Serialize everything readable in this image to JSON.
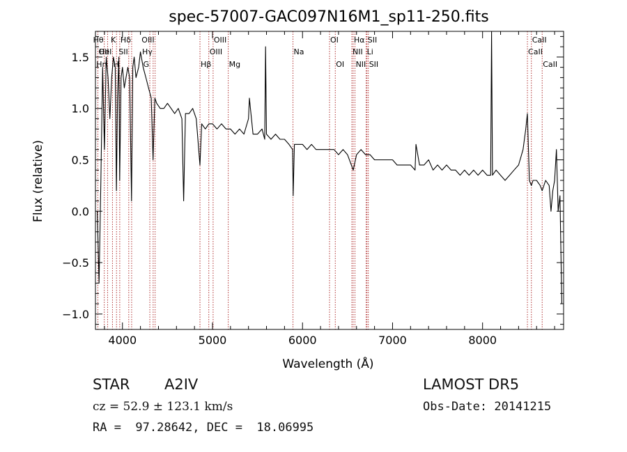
{
  "chart_data": {
    "type": "line",
    "title": "spec-57007-GAC097N16M1_sp11-250.fits",
    "xlabel": "Wavelength (Å)",
    "ylabel": "Flux (relative)",
    "xlim": [
      3700,
      8900
    ],
    "ylim": [
      -1.15,
      1.75
    ],
    "xticks": [
      4000,
      5000,
      6000,
      7000,
      8000
    ],
    "yticks": [
      -1.0,
      -0.5,
      0.0,
      0.5,
      1.0,
      1.5
    ],
    "xtick_labels": [
      "4000",
      "5000",
      "6000",
      "7000",
      "8000"
    ],
    "ytick_labels": [
      "−1.0",
      "−0.5",
      "0.0",
      "0.5",
      "1.0",
      "1.5"
    ],
    "grid": false,
    "series": [
      {
        "x": [
          3720,
          3740,
          3760,
          3780,
          3800,
          3820,
          3840,
          3860,
          3880,
          3900,
          3920,
          3933,
          3945,
          3960,
          3969,
          3985,
          4000,
          4020,
          4040,
          4060,
          4080,
          4101,
          4115,
          4130,
          4150,
          4180,
          4200,
          4230,
          4260,
          4290,
          4320,
          4340,
          4360,
          4380,
          4420,
          4460,
          4500,
          4540,
          4580,
          4620,
          4660,
          4680,
          4700,
          4740,
          4780,
          4820,
          4861,
          4880,
          4920,
          4960,
          5000,
          5050,
          5100,
          5150,
          5200,
          5250,
          5300,
          5350,
          5400,
          5410,
          5450,
          5500,
          5550,
          5580,
          5590,
          5600,
          5650,
          5700,
          5750,
          5800,
          5850,
          5890,
          5896,
          5910,
          5950,
          6000,
          6050,
          6100,
          6150,
          6200,
          6250,
          6300,
          6350,
          6400,
          6450,
          6500,
          6563,
          6600,
          6650,
          6700,
          6750,
          6800,
          6850,
          6900,
          6950,
          7000,
          7050,
          7100,
          7150,
          7200,
          7250,
          7260,
          7300,
          7350,
          7400,
          7450,
          7500,
          7550,
          7600,
          7650,
          7700,
          7750,
          7800,
          7850,
          7900,
          7950,
          8000,
          8050,
          8090,
          8100,
          8110,
          8150,
          8200,
          8250,
          8300,
          8350,
          8400,
          8450,
          8480,
          8498,
          8520,
          8542,
          8560,
          8600,
          8640,
          8662,
          8700,
          8740,
          8760,
          8780,
          8800,
          8820,
          8840,
          8860,
          8880
        ],
        "y": [
          0.0,
          -0.7,
          0.3,
          1.4,
          0.6,
          1.5,
          1.3,
          0.9,
          1.3,
          1.5,
          1.4,
          0.2,
          1.1,
          1.5,
          0.3,
          1.3,
          1.4,
          1.2,
          1.3,
          1.4,
          1.3,
          0.1,
          1.4,
          1.5,
          1.3,
          1.4,
          1.55,
          1.4,
          1.3,
          1.2,
          1.1,
          0.5,
          1.1,
          1.05,
          1.0,
          1.0,
          1.05,
          1.0,
          0.95,
          1.0,
          0.9,
          0.1,
          0.95,
          0.95,
          1.0,
          0.9,
          0.45,
          0.85,
          0.8,
          0.85,
          0.85,
          0.8,
          0.85,
          0.8,
          0.8,
          0.75,
          0.8,
          0.75,
          0.9,
          1.1,
          0.75,
          0.75,
          0.8,
          0.7,
          1.6,
          0.75,
          0.7,
          0.75,
          0.7,
          0.7,
          0.65,
          0.6,
          0.15,
          0.65,
          0.65,
          0.65,
          0.6,
          0.65,
          0.6,
          0.6,
          0.6,
          0.6,
          0.6,
          0.55,
          0.6,
          0.55,
          0.4,
          0.55,
          0.6,
          0.55,
          0.55,
          0.5,
          0.5,
          0.5,
          0.5,
          0.5,
          0.45,
          0.45,
          0.45,
          0.45,
          0.4,
          0.65,
          0.45,
          0.45,
          0.5,
          0.4,
          0.45,
          0.4,
          0.45,
          0.4,
          0.4,
          0.35,
          0.4,
          0.35,
          0.4,
          0.35,
          0.4,
          0.35,
          0.35,
          1.75,
          0.35,
          0.4,
          0.35,
          0.3,
          0.35,
          0.4,
          0.45,
          0.6,
          0.8,
          0.95,
          0.3,
          0.25,
          0.3,
          0.3,
          0.25,
          0.2,
          0.3,
          0.25,
          0.0,
          0.2,
          0.3,
          0.6,
          0.0,
          0.15,
          -0.9
        ]
      }
    ],
    "lines": [
      {
        "x": 3727,
        "label": "OII",
        "row": 1,
        "side": "right"
      },
      {
        "x": 3798,
        "label": "Hθ",
        "row": 0,
        "side": "left"
      },
      {
        "x": 3835,
        "label": "Hη",
        "row": 2,
        "side": "left"
      },
      {
        "x": 3889,
        "label": "HeI",
        "row": 1,
        "side": "left"
      },
      {
        "x": 3934,
        "label": "K",
        "row": 0,
        "side": "left"
      },
      {
        "x": 3970,
        "label": "H",
        "row": 2,
        "side": "left"
      },
      {
        "x": 4070,
        "label": "SII",
        "row": 1,
        "side": "left"
      },
      {
        "x": 4102,
        "label": "Hδ",
        "row": 0,
        "side": "left"
      },
      {
        "x": 4304,
        "label": "G",
        "row": 2,
        "side": "left"
      },
      {
        "x": 4341,
        "label": "Hγ",
        "row": 1,
        "side": "left"
      },
      {
        "x": 4363,
        "label": "OIII",
        "row": 0,
        "side": "left"
      },
      {
        "x": 4861,
        "label": "Hβ",
        "row": 2,
        "side": "right"
      },
      {
        "x": 4959,
        "label": "OIII",
        "row": 1,
        "side": "right"
      },
      {
        "x": 5007,
        "label": "OIII",
        "row": 0,
        "side": "right"
      },
      {
        "x": 5175,
        "label": "Mg",
        "row": 2,
        "side": "right"
      },
      {
        "x": 5894,
        "label": "Na",
        "row": 1,
        "side": "right"
      },
      {
        "x": 6300,
        "label": "OI",
        "row": 0,
        "side": "right"
      },
      {
        "x": 6364,
        "label": "OI",
        "row": 2,
        "side": "right"
      },
      {
        "x": 6548,
        "label": "NII",
        "row": 1,
        "side": "right"
      },
      {
        "x": 6563,
        "label": "Hα",
        "row": 0,
        "side": "right"
      },
      {
        "x": 6583,
        "label": "NII",
        "row": 2,
        "side": "right"
      },
      {
        "x": 6707,
        "label": "Li",
        "row": 1,
        "side": "right"
      },
      {
        "x": 6716,
        "label": "SII",
        "row": 0,
        "side": "right"
      },
      {
        "x": 6731,
        "label": "SII",
        "row": 2,
        "side": "right"
      },
      {
        "x": 8498,
        "label": "CaII",
        "row": 1,
        "side": "right"
      },
      {
        "x": 8542,
        "label": "CaII",
        "row": 0,
        "side": "right"
      },
      {
        "x": 8662,
        "label": "CaII",
        "row": 2,
        "side": "right"
      }
    ],
    "line_color": "#b03030"
  },
  "info": {
    "star_label": "STAR",
    "class_label": "A2IV",
    "survey": "LAMOST DR5",
    "cz_line": "cz = 52.9 ± 123.1 km/s",
    "obs_date": "Obs-Date: 20141215",
    "coords": "RA =  97.28642, DEC =  18.06995"
  }
}
